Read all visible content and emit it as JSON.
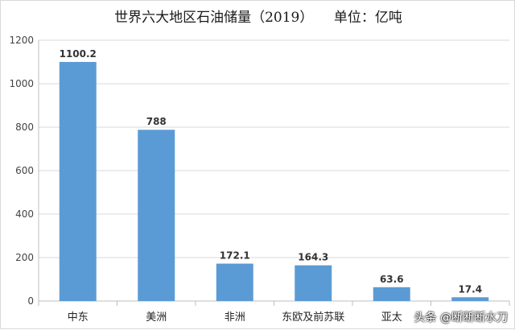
{
  "title": "世界六大地区石油储量（2019）　　单位：亿吨",
  "watermark": "头条 @断断断水刀",
  "colors": {
    "bar": "#5b9bd5",
    "grid": "#d9d9d9",
    "axis": "#bfbfbf"
  },
  "chart_data": {
    "type": "bar",
    "title": "世界六大地区石油储量（2019）　　单位：亿吨",
    "categories": [
      "中东",
      "美洲",
      "非洲",
      "东欧及前苏联",
      "亚太",
      ""
    ],
    "values": [
      1100.2,
      788,
      172.1,
      164.3,
      63.6,
      17.4
    ],
    "data_labels": [
      "1100.2",
      "788",
      "172.1",
      "164.3",
      "63.6",
      "17.4"
    ],
    "yticks": [
      "0",
      "200",
      "400",
      "600",
      "800",
      "1000",
      "1200"
    ],
    "ylim": [
      0,
      1200
    ],
    "xlabel": "",
    "ylabel": "",
    "grid": true,
    "legend": "none"
  }
}
